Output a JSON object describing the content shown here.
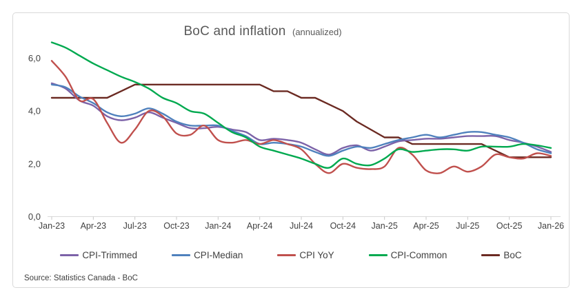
{
  "source_note": "Source: Statistics Canada - BoC",
  "chart_data": {
    "type": "line",
    "title": "BoC and inflation",
    "subtitle": "(annualized)",
    "legend_position": "bottom",
    "grid": false,
    "x_interval": "monthly",
    "x_label_every": 3,
    "x_labels": [
      "Jan-23",
      "Apr-23",
      "Jul-23",
      "Oct-23",
      "Jan-24",
      "Apr-24",
      "Jul-24",
      "Oct-24",
      "Jan-25",
      "Apr-25",
      "Jul-25",
      "Oct-25",
      "Jan-26"
    ],
    "y_ticks": [
      "0,0",
      "2,0",
      "4,0",
      "6,0"
    ],
    "y_tick_values": [
      0,
      2,
      4,
      6
    ],
    "ylim": [
      0,
      7.2
    ],
    "axis_color": "#D9D9D9",
    "tick_text_color": "#404040",
    "draw_order": [
      4,
      0,
      1,
      2,
      3
    ],
    "series": [
      {
        "name": "CPI-Trimmed",
        "color": "#7C62A8",
        "smooth": true,
        "values": [
          5.05,
          4.85,
          4.4,
          4.2,
          3.8,
          3.65,
          3.75,
          3.95,
          3.75,
          3.55,
          3.35,
          3.35,
          3.4,
          3.3,
          3.2,
          2.9,
          2.95,
          2.9,
          2.8,
          2.55,
          2.35,
          2.6,
          2.7,
          2.5,
          2.65,
          2.85,
          2.9,
          2.95,
          2.95,
          3.0,
          3.05,
          3.05,
          3.05,
          2.9,
          2.8,
          2.65,
          2.45
        ]
      },
      {
        "name": "CPI-Median",
        "color": "#4F81BD",
        "smooth": true,
        "values": [
          5.0,
          4.9,
          4.55,
          4.3,
          3.95,
          3.8,
          3.9,
          4.1,
          3.9,
          3.6,
          3.45,
          3.45,
          3.45,
          3.25,
          3.05,
          2.75,
          2.8,
          2.75,
          2.65,
          2.45,
          2.3,
          2.5,
          2.65,
          2.6,
          2.75,
          2.9,
          3.0,
          3.1,
          3.0,
          3.1,
          3.2,
          3.2,
          3.1,
          3.0,
          2.8,
          2.55,
          2.4
        ]
      },
      {
        "name": "CPI YoY",
        "color": "#C0504D",
        "smooth": true,
        "values": [
          5.9,
          5.3,
          4.4,
          4.45,
          3.55,
          2.8,
          3.3,
          4.0,
          3.8,
          3.15,
          3.1,
          3.45,
          2.9,
          2.8,
          2.9,
          2.75,
          2.9,
          2.75,
          2.55,
          2.0,
          1.65,
          2.0,
          1.85,
          1.8,
          1.9,
          2.6,
          2.35,
          1.75,
          1.65,
          1.9,
          1.7,
          1.9,
          2.35,
          2.25,
          2.2,
          2.4,
          2.3
        ]
      },
      {
        "name": "CPI-Common",
        "color": "#00A94F",
        "smooth": true,
        "values": [
          6.6,
          6.4,
          6.1,
          5.8,
          5.55,
          5.3,
          5.1,
          4.85,
          4.5,
          4.3,
          4.0,
          3.9,
          3.55,
          3.2,
          3.0,
          2.65,
          2.5,
          2.35,
          2.2,
          2.0,
          1.85,
          2.2,
          2.0,
          1.95,
          2.2,
          2.55,
          2.45,
          2.5,
          2.55,
          2.55,
          2.5,
          2.65,
          2.65,
          2.65,
          2.75,
          2.7,
          2.6
        ]
      },
      {
        "name": "BoC",
        "color": "#6B2A22",
        "smooth": false,
        "values": [
          4.5,
          4.5,
          4.5,
          4.5,
          4.5,
          4.75,
          5.0,
          5.0,
          5.0,
          5.0,
          5.0,
          5.0,
          5.0,
          5.0,
          5.0,
          5.0,
          4.75,
          4.75,
          4.5,
          4.5,
          4.25,
          4.0,
          3.6,
          3.3,
          3.0,
          3.0,
          2.75,
          2.75,
          2.75,
          2.75,
          2.75,
          2.75,
          2.5,
          2.25,
          2.25,
          2.25,
          2.25
        ]
      }
    ]
  }
}
